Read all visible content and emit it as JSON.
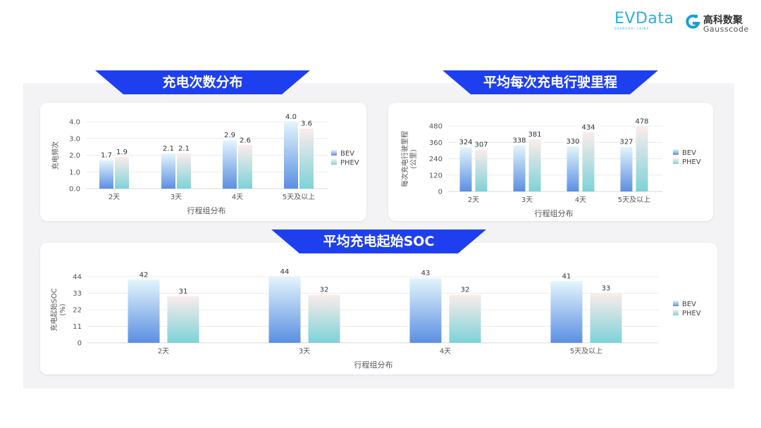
{
  "logos": {
    "evdata": "EVData",
    "evdata_sub": "SHANGHAI CHINA",
    "gauss_cn": "高科数聚",
    "gauss_en": "Gausscode"
  },
  "colors": {
    "banner": "#1e3ff0",
    "bev_top": "#e3f5fb",
    "bev_bottom": "#5b8fe2",
    "phev_top": "#fbeceb",
    "phev_bottom": "#7dd2d8",
    "accent": "#1aa3d9"
  },
  "chart_data": [
    {
      "type": "bar",
      "title": "充电次数分布",
      "xlabel": "行程组分布",
      "ylabel": "充电频次",
      "categories": [
        "2天",
        "3天",
        "4天",
        "5天及以上"
      ],
      "ylim": [
        0,
        4
      ],
      "yticks": [
        "0.0",
        "1.0",
        "2.0",
        "3.0",
        "4.0"
      ],
      "grid": true,
      "legend": "right",
      "series": [
        {
          "name": "BEV",
          "values": [
            1.7,
            2.1,
            2.9,
            4.0
          ],
          "labels": [
            "1.7",
            "2.1",
            "2.9",
            "4.0"
          ]
        },
        {
          "name": "PHEV",
          "values": [
            1.9,
            2.1,
            2.6,
            3.6
          ],
          "labels": [
            "1.9",
            "2.1",
            "2.6",
            "3.6"
          ]
        }
      ]
    },
    {
      "type": "bar",
      "title": "平均每次充电行驶里程",
      "xlabel": "行程组分布",
      "ylabel": "每次充电行驶里程",
      "ylabel2": "(公里)",
      "categories": [
        "2天",
        "3天",
        "4天",
        "5天及以上"
      ],
      "ylim": [
        0,
        480
      ],
      "yticks": [
        "0",
        "120",
        "240",
        "360",
        "480"
      ],
      "grid": true,
      "legend": "right",
      "series": [
        {
          "name": "BEV",
          "values": [
            324,
            338,
            330,
            327
          ],
          "labels": [
            "324",
            "338",
            "330",
            "327"
          ]
        },
        {
          "name": "PHEV",
          "values": [
            307,
            381,
            434,
            478
          ],
          "labels": [
            "307",
            "381",
            "434",
            "478"
          ]
        }
      ]
    },
    {
      "type": "bar",
      "title": "平均充电起始SOC",
      "xlabel": "行程组分布",
      "ylabel": "充电起始SOC",
      "ylabel2": "(%)",
      "categories": [
        "2天",
        "3天",
        "4天",
        "5天及以上"
      ],
      "ylim": [
        0,
        44
      ],
      "yticks": [
        "0",
        "11",
        "22",
        "33",
        "44"
      ],
      "grid": true,
      "legend": "right",
      "series": [
        {
          "name": "BEV",
          "values": [
            42,
            44,
            43,
            41
          ],
          "labels": [
            "42",
            "44",
            "43",
            "41"
          ]
        },
        {
          "name": "PHEV",
          "values": [
            31,
            32,
            32,
            33
          ],
          "labels": [
            "31",
            "32",
            "32",
            "33"
          ]
        }
      ]
    }
  ]
}
